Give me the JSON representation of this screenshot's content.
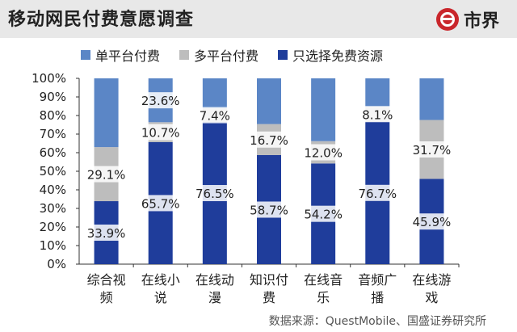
{
  "header": {
    "title": "移动网民付费意愿调查",
    "brand": "市界"
  },
  "source": "数据来源：QuestMobile、国盛证券研究所",
  "colors": {
    "single": "#5b86c6",
    "multi": "#bdbdbd",
    "free": "#1f3d9b",
    "header_bg": "#e8e8e8",
    "brand_red": "#c9262b"
  },
  "chart_data": {
    "type": "bar",
    "stacked": true,
    "title": "移动网民付费意愿调查",
    "categories": [
      "综合视频",
      "在线小说",
      "在线动漫",
      "知识付费",
      "在线音乐",
      "音频广播",
      "在线游戏"
    ],
    "category_lines": [
      [
        "综合视",
        "频"
      ],
      [
        "在线小",
        "说"
      ],
      [
        "在线动",
        "漫"
      ],
      [
        "知识付",
        "费"
      ],
      [
        "在线音",
        "乐"
      ],
      [
        "音频广",
        "播"
      ],
      [
        "在线游",
        "戏"
      ]
    ],
    "series": [
      {
        "name": "只选择免费资源",
        "values": [
          33.9,
          65.7,
          76.5,
          58.7,
          54.2,
          76.7,
          45.9
        ],
        "color": "#1f3d9b"
      },
      {
        "name": "多平台付费",
        "values": [
          29.1,
          10.7,
          7.4,
          16.7,
          12.0,
          8.1,
          31.7
        ],
        "color": "#bdbdbd"
      },
      {
        "name": "单平台付费",
        "values": [
          37.0,
          23.6,
          16.1,
          24.6,
          33.8,
          15.2,
          22.4
        ],
        "color": "#5b86c6"
      }
    ],
    "labels": {
      "free": [
        "33.9%",
        "65.7%",
        "76.5%",
        "58.7%",
        "54.2%",
        "76.7%",
        "45.9%"
      ],
      "multi": [
        "29.1%",
        "10.7%",
        "7.4%",
        "16.7%",
        "12.0%",
        "8.1%",
        "31.7%"
      ],
      "single": [
        "",
        "23.6%",
        "",
        "",
        "",
        "",
        ""
      ]
    },
    "legend": [
      "单平台付费",
      "多平台付费",
      "只选择免费资源"
    ],
    "yticks": [
      "0%",
      "10%",
      "20%",
      "30%",
      "40%",
      "50%",
      "60%",
      "70%",
      "80%",
      "90%",
      "100%"
    ],
    "ylim": [
      0,
      100
    ],
    "grid": false,
    "legend_position": "top"
  }
}
